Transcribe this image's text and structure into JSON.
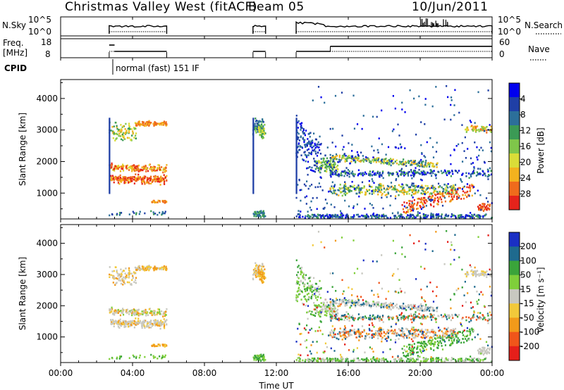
{
  "header": {
    "title": "Christmas Valley West (fitACF)",
    "beam": "Beam 05",
    "date": "10/Jun/2011"
  },
  "panel_labels": {
    "nsky": "N.Sky",
    "freq_l1": "Freq.",
    "freq_l2": "[MHz]",
    "cpid": "CPID",
    "nsearch": "N.Search",
    "nave": "Nave",
    "cpid_text": "normal (fast) 151 IF"
  },
  "chart_data": {
    "type": "heatmap",
    "xlabel": "Time UT",
    "x_ticks": [
      "00:00",
      "04:00",
      "08:00",
      "12:00",
      "16:00",
      "20:00",
      "00:00"
    ],
    "x_range_hours": [
      0,
      24
    ],
    "ylabel": "Slant Range [km]",
    "y_range_km": [
      180,
      4600
    ],
    "y_ticks": [
      "1000",
      "2000",
      "3000",
      "4000"
    ],
    "y_tick_values": [
      1000,
      2000,
      3000,
      4000
    ],
    "nsky_ticks": [
      "10^5",
      "10^0"
    ],
    "freq_ticks": [
      "18",
      "8"
    ],
    "nave_ticks": [
      "60",
      "0"
    ],
    "data_coverage_hours": [
      [
        2.7,
        5.9
      ],
      [
        10.7,
        11.4
      ],
      [
        13.1,
        24.0
      ]
    ],
    "frequency_steps": [
      {
        "from": 2.7,
        "to": 3.0,
        "mhz": 15
      },
      {
        "from": 3.0,
        "to": 5.9,
        "mhz": 10
      },
      {
        "from": 10.7,
        "to": 11.4,
        "mhz": 10
      },
      {
        "from": 13.1,
        "to": 15.0,
        "mhz": 10
      },
      {
        "from": 15.0,
        "to": 24.0,
        "mhz": 14
      }
    ],
    "power": {
      "colorbar_label": "Power [dB]",
      "ticks": [
        "4",
        "8",
        "12",
        "16",
        "20",
        "24",
        "28"
      ],
      "colors": [
        "#0000ee",
        "#1f3fa6",
        "#2c6f9a",
        "#3b9a55",
        "#7fc64a",
        "#dadd38",
        "#f3b21e",
        "#ef6b1c",
        "#e5231b"
      ]
    },
    "velocity": {
      "colorbar_label": "Velocity [m s⁻¹]",
      "ticks": [
        "200",
        "100",
        "50",
        "15",
        "-15",
        "-50",
        "-100",
        "-200"
      ],
      "colors": [
        "#1a2fc4",
        "#1e6a8e",
        "#3aa43a",
        "#7fcf3a",
        "#c8c8c0",
        "#f2c93a",
        "#f29a1a",
        "#f0551a",
        "#e51f1a"
      ]
    }
  }
}
